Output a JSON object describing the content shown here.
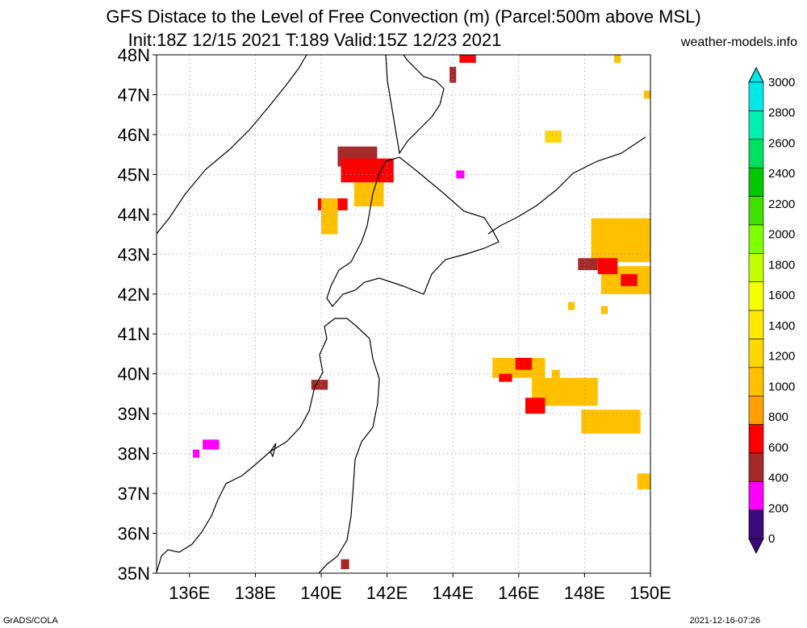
{
  "title_line1": "GFS Distace to the Level of Free Convection (m) (Parcel:500m above MSL)",
  "title_line2": "Init:18Z 12/15 2021 T:189 Valid:15Z 12/23 2021",
  "site": "weather-models.info",
  "credit": "GrADS/COLA",
  "timestamp": "2021-12-16-07:26",
  "map": {
    "lon_range": [
      135,
      150
    ],
    "lat_range": [
      35,
      48
    ],
    "lat_ticks": [
      "35N",
      "36N",
      "37N",
      "38N",
      "39N",
      "40N",
      "41N",
      "42N",
      "43N",
      "44N",
      "45N",
      "46N",
      "47N",
      "48N"
    ],
    "lon_ticks": [
      "136E",
      "138E",
      "140E",
      "142E",
      "144E",
      "146E",
      "148E",
      "150E"
    ],
    "gridlines": true
  },
  "colorbar": {
    "labels": [
      "0",
      "200",
      "400",
      "600",
      "800",
      "1000",
      "1200",
      "1400",
      "1600",
      "1800",
      "2000",
      "2200",
      "2400",
      "2600",
      "2800",
      "3000"
    ],
    "colors": [
      "#3d0a7a",
      "#ff00ff",
      "#a52a2a",
      "#ff0000",
      "#ffa000",
      "#ffc000",
      "#ffd700",
      "#ffe800",
      "#f5ff00",
      "#bfff00",
      "#7fff00",
      "#40e000",
      "#00c800",
      "#00e060",
      "#00f0b0",
      "#00e8e8"
    ]
  },
  "fields": [
    {
      "lon": 140.5,
      "lat": 45.2,
      "w": 1.2,
      "h": 0.5,
      "color": "#a52a2a"
    },
    {
      "lon": 140.6,
      "lat": 44.8,
      "w": 1.6,
      "h": 0.6,
      "color": "#ff0000"
    },
    {
      "lon": 141.0,
      "lat": 44.2,
      "w": 0.9,
      "h": 0.6,
      "color": "#ffc000"
    },
    {
      "lon": 139.9,
      "lat": 44.1,
      "w": 0.9,
      "h": 0.3,
      "color": "#ff0000"
    },
    {
      "lon": 140.0,
      "lat": 43.5,
      "w": 0.5,
      "h": 0.9,
      "color": "#ffc000"
    },
    {
      "lon": 144.2,
      "lat": 47.8,
      "w": 0.5,
      "h": 0.3,
      "color": "#ff0000"
    },
    {
      "lon": 143.9,
      "lat": 47.3,
      "w": 0.2,
      "h": 0.4,
      "color": "#a52a2a"
    },
    {
      "lon": 144.1,
      "lat": 44.9,
      "w": 0.25,
      "h": 0.2,
      "color": "#ff00ff"
    },
    {
      "lon": 146.8,
      "lat": 45.8,
      "w": 0.5,
      "h": 0.3,
      "color": "#ffd700"
    },
    {
      "lon": 148.2,
      "lat": 42.8,
      "w": 1.8,
      "h": 1.1,
      "color": "#ffc000"
    },
    {
      "lon": 148.5,
      "lat": 42.0,
      "w": 1.5,
      "h": 0.7,
      "color": "#ffc000"
    },
    {
      "lon": 147.8,
      "lat": 42.6,
      "w": 0.6,
      "h": 0.3,
      "color": "#a52a2a"
    },
    {
      "lon": 148.4,
      "lat": 42.5,
      "w": 0.6,
      "h": 0.4,
      "color": "#ff0000"
    },
    {
      "lon": 149.1,
      "lat": 42.2,
      "w": 0.5,
      "h": 0.3,
      "color": "#ff0000"
    },
    {
      "lon": 145.2,
      "lat": 39.9,
      "w": 1.6,
      "h": 0.5,
      "color": "#ffc000"
    },
    {
      "lon": 146.4,
      "lat": 39.2,
      "w": 2.0,
      "h": 0.7,
      "color": "#ffc000"
    },
    {
      "lon": 147.9,
      "lat": 38.5,
      "w": 1.8,
      "h": 0.6,
      "color": "#ffc000"
    },
    {
      "lon": 145.4,
      "lat": 39.8,
      "w": 0.4,
      "h": 0.2,
      "color": "#ff0000"
    },
    {
      "lon": 145.9,
      "lat": 40.1,
      "w": 0.5,
      "h": 0.3,
      "color": "#ff0000"
    },
    {
      "lon": 146.2,
      "lat": 39.0,
      "w": 0.6,
      "h": 0.4,
      "color": "#ff0000"
    },
    {
      "lon": 149.6,
      "lat": 37.1,
      "w": 0.7,
      "h": 0.4,
      "color": "#ffc000"
    },
    {
      "lon": 149.8,
      "lat": 46.9,
      "w": 0.2,
      "h": 0.2,
      "color": "#ffc000"
    },
    {
      "lon": 148.9,
      "lat": 47.8,
      "w": 0.2,
      "h": 0.2,
      "color": "#ffc000"
    },
    {
      "lon": 139.7,
      "lat": 39.6,
      "w": 0.5,
      "h": 0.25,
      "color": "#a52a2a"
    },
    {
      "lon": 136.4,
      "lat": 38.1,
      "w": 0.5,
      "h": 0.25,
      "color": "#ff00ff"
    },
    {
      "lon": 136.1,
      "lat": 37.9,
      "w": 0.2,
      "h": 0.2,
      "color": "#ff00ff"
    },
    {
      "lon": 140.6,
      "lat": 35.1,
      "w": 0.25,
      "h": 0.25,
      "color": "#a52a2a"
    },
    {
      "lon": 147.0,
      "lat": 39.9,
      "w": 0.25,
      "h": 0.2,
      "color": "#ffc000"
    },
    {
      "lon": 147.4,
      "lat": 39.5,
      "w": 0.3,
      "h": 0.3,
      "color": "#ffc000"
    },
    {
      "lon": 148.5,
      "lat": 41.5,
      "w": 0.2,
      "h": 0.2,
      "color": "#ffc000"
    },
    {
      "lon": 147.5,
      "lat": 41.6,
      "w": 0.2,
      "h": 0.2,
      "color": "#ffc000"
    }
  ]
}
